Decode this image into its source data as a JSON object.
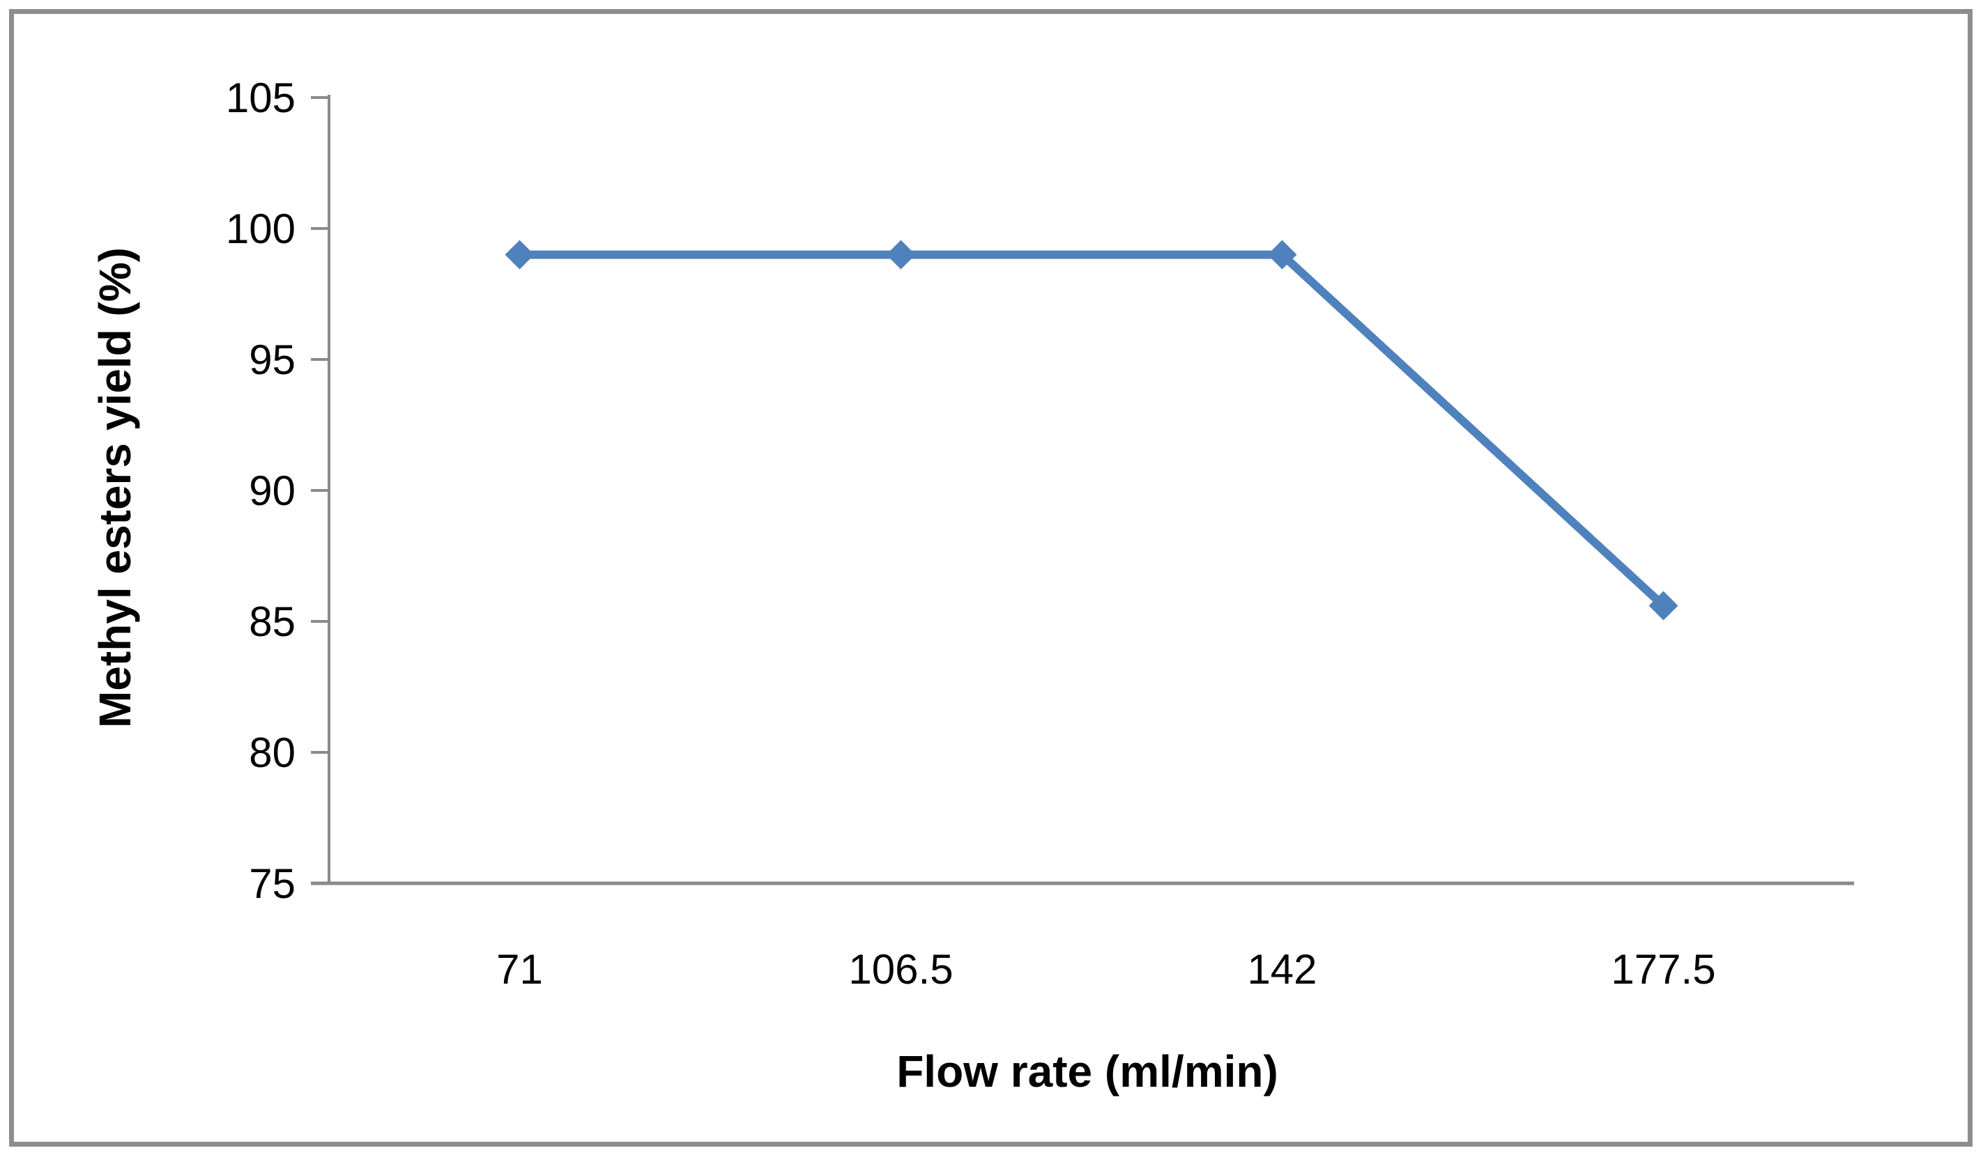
{
  "chart_data": {
    "type": "line",
    "categories": [
      "71",
      "106.5",
      "142",
      "177.5"
    ],
    "values": [
      99,
      99,
      99,
      85.6
    ],
    "xlabel": "Flow rate (ml/min)",
    "ylabel": "Methyl esters yield (%)",
    "ylim": [
      75,
      105
    ],
    "yticks": [
      75,
      80,
      85,
      90,
      95,
      100,
      105
    ],
    "grid": false,
    "legend": false,
    "marker": "diamond",
    "colors": {
      "line": "#4F81BD",
      "axis": "#8a8a8a",
      "tick_text": "#000000",
      "frame_border": "#8d8d8d",
      "background": "#ffffff"
    }
  }
}
